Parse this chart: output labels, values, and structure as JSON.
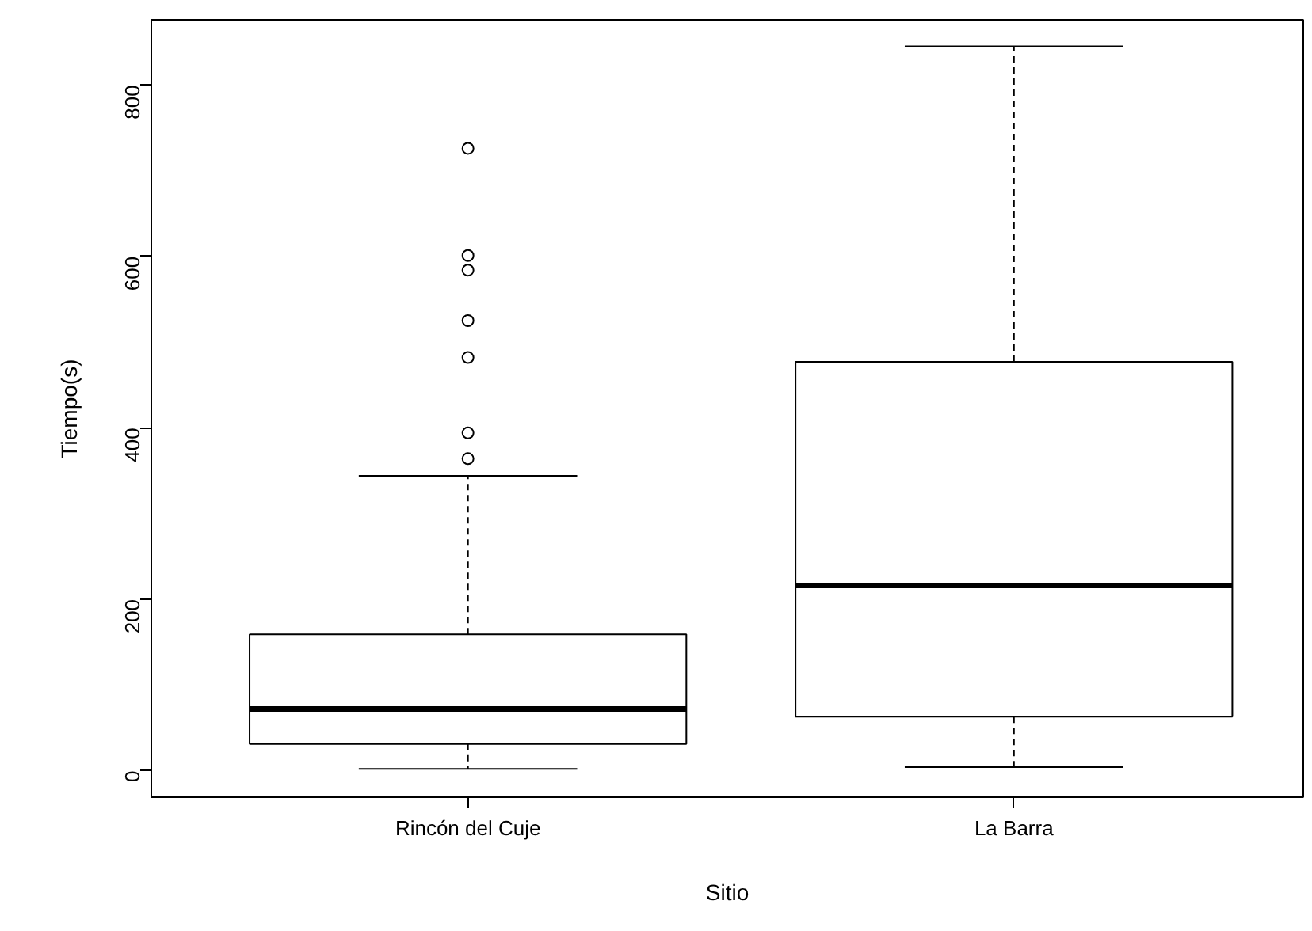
{
  "chart_data": {
    "type": "box",
    "xlabel": "Sitio",
    "ylabel": "Tiempo(s)",
    "categories": [
      "Rincón del Cuje",
      "La Barra"
    ],
    "boxes": [
      {
        "low": 2,
        "q1": 31,
        "median": 72,
        "q3": 159,
        "high": 344,
        "outliers": [
          364,
          394,
          482,
          525,
          584,
          601,
          726
        ]
      },
      {
        "low": 4,
        "q1": 63,
        "median": 216,
        "q3": 477,
        "high": 845
      }
    ],
    "color": "#ffffff",
    "ylim": [
      -31,
      876
    ],
    "yticks": [
      0,
      200,
      400,
      600,
      800
    ],
    "grid": false,
    "marker": "circle"
  }
}
